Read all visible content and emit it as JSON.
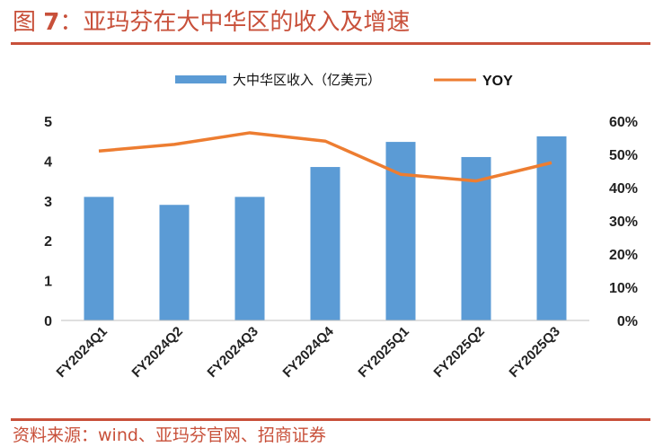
{
  "header": {
    "title_prefix": "图 ",
    "title_num": "7",
    "title_text": "：亚玛芬在大中华区的收入及增速"
  },
  "footer": {
    "source": "资料来源：wind、亚玛芬官网、招商证券"
  },
  "colors": {
    "bar": "#5b9bd5",
    "line": "#ed7d31",
    "accent": "#c8503a"
  },
  "chart_data": {
    "type": "bar",
    "categories": [
      "FY2024Q1",
      "FY2024Q2",
      "FY2024Q3",
      "FY2024Q4",
      "FY2025Q1",
      "FY2025Q2",
      "FY2025Q3"
    ],
    "series": [
      {
        "name": "大中华区收入（亿美元）",
        "type": "bar",
        "axis": "left",
        "values": [
          3.1,
          2.9,
          3.1,
          3.85,
          4.48,
          4.1,
          4.62
        ]
      },
      {
        "name": "YOY",
        "type": "line",
        "axis": "right",
        "values": [
          51,
          53,
          56.5,
          54,
          44,
          42,
          47.5
        ]
      }
    ],
    "y_left": {
      "ylim": [
        0,
        5
      ],
      "ticks": [
        "0",
        "1",
        "2",
        "3",
        "4",
        "5"
      ]
    },
    "y_right": {
      "ylim": [
        0,
        60
      ],
      "ticks": [
        "0%",
        "10%",
        "20%",
        "30%",
        "40%",
        "50%",
        "60%"
      ]
    },
    "legend_position": "top",
    "grid": false
  }
}
